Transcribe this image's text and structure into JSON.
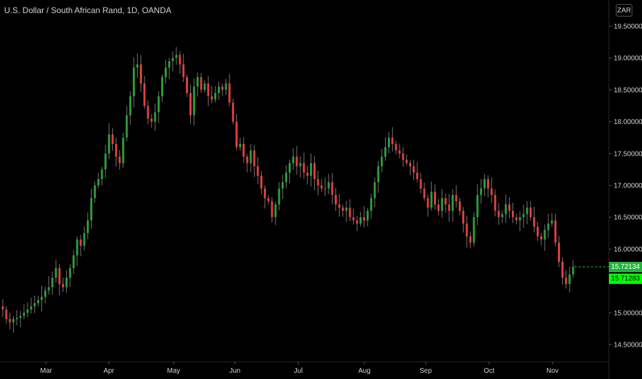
{
  "header": {
    "symbol_title": "U.S. Dollar / South African Rand, 1D, OANDA",
    "currency_badge": "ZAR"
  },
  "price_tags": {
    "last_price": "15.72134",
    "close_price": "15.71283",
    "last_color": "#22b33c",
    "close_color": "#00ff00"
  },
  "colors": {
    "up": "#2e9e3e",
    "down": "#e04040",
    "axis_text": "#d1d4dc",
    "axis_line": "#3a3a3a",
    "last_price_line": "#2ec845"
  },
  "chart_data": {
    "type": "candlestick",
    "title": "U.S. Dollar / South African Rand, 1D, OANDA",
    "ylim": [
      14.2,
      19.9
    ],
    "y_ticks": [
      "19.50000",
      "19.00000",
      "18.50000",
      "18.00000",
      "17.50000",
      "17.00000",
      "16.50000",
      "16.00000",
      "15.50000",
      "15.00000",
      "14.50000"
    ],
    "x_ticks": [
      "Mar",
      "Apr",
      "May",
      "Jun",
      "Jul",
      "Aug",
      "Sep",
      "Oct",
      "Nov"
    ],
    "last_value": 15.72134,
    "grid": false,
    "legend": "none",
    "series": [
      {
        "name": "USD/ZAR",
        "close": [
          15.05,
          14.9,
          14.85,
          14.9,
          14.92,
          14.95,
          15.0,
          15.05,
          15.1,
          15.15,
          15.2,
          15.25,
          15.35,
          15.4,
          15.55,
          15.7,
          15.45,
          15.4,
          15.55,
          15.7,
          15.9,
          16.15,
          16.05,
          16.25,
          16.45,
          16.8,
          17.0,
          17.1,
          17.25,
          17.5,
          17.8,
          17.65,
          17.45,
          17.35,
          17.75,
          18.1,
          18.4,
          18.85,
          18.9,
          18.6,
          18.25,
          18.05,
          18.0,
          18.15,
          18.4,
          18.7,
          18.85,
          18.95,
          19.0,
          19.05,
          18.9,
          18.7,
          18.45,
          18.1,
          18.55,
          18.7,
          18.5,
          18.6,
          18.4,
          18.35,
          18.45,
          18.55,
          18.5,
          18.6,
          18.3,
          18.0,
          17.6,
          17.65,
          17.45,
          17.35,
          17.55,
          17.3,
          17.15,
          16.95,
          16.8,
          16.75,
          16.5,
          16.7,
          16.95,
          17.05,
          17.2,
          17.35,
          17.45,
          17.3,
          17.35,
          17.2,
          17.15,
          17.35,
          17.1,
          17.0,
          16.95,
          16.95,
          17.05,
          16.85,
          16.7,
          16.65,
          16.6,
          16.65,
          16.5,
          16.45,
          16.4,
          16.5,
          16.45,
          16.6,
          16.8,
          17.05,
          17.3,
          17.45,
          17.6,
          17.75,
          17.65,
          17.55,
          17.5,
          17.4,
          17.35,
          17.3,
          17.2,
          17.1,
          16.95,
          16.8,
          16.65,
          16.9,
          16.7,
          16.6,
          16.8,
          16.7,
          16.6,
          16.85,
          16.75,
          16.6,
          16.4,
          16.2,
          16.1,
          16.5,
          16.85,
          16.95,
          17.1,
          16.95,
          16.85,
          16.6,
          16.5,
          16.55,
          16.7,
          16.6,
          16.5,
          16.45,
          16.5,
          16.55,
          16.65,
          16.5,
          16.35,
          16.2,
          16.15,
          16.3,
          16.4,
          16.45,
          16.1,
          15.8,
          15.55,
          15.45,
          15.6,
          15.72
        ],
        "candle_count": 166
      }
    ]
  }
}
